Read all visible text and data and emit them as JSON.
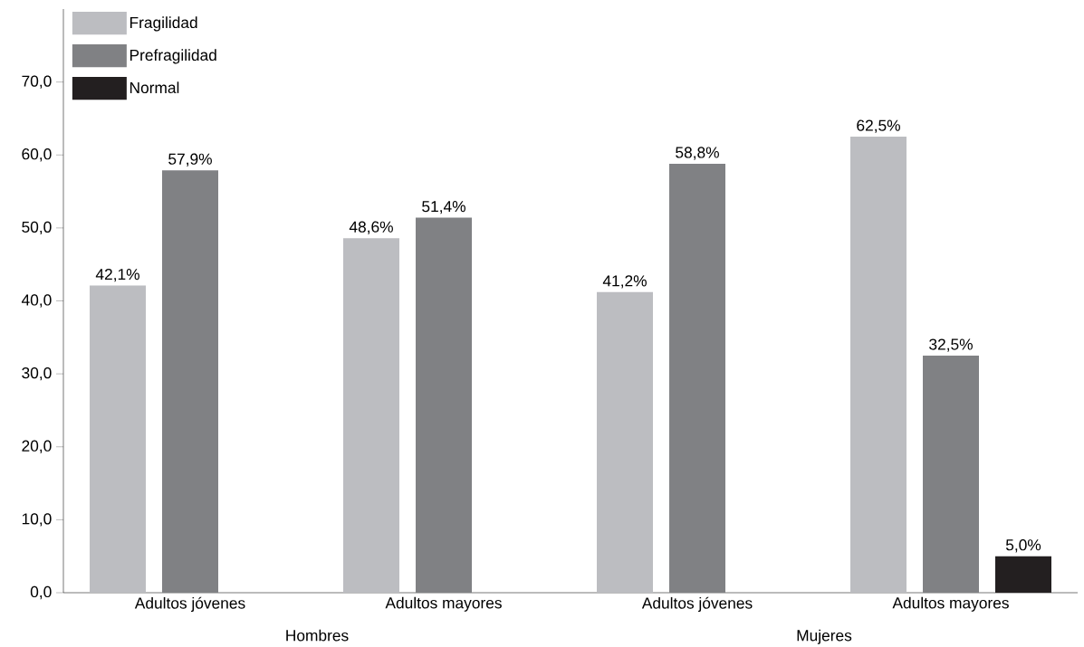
{
  "chart_data": {
    "type": "bar",
    "categories": [
      "Adultos jóvenes",
      "Adultos mayores",
      "Adultos jóvenes",
      "Adultos mayores"
    ],
    "series": [
      {
        "name": "Fragilidad",
        "color": "#bcbdc1",
        "values": [
          42.1,
          48.6,
          41.2,
          62.5
        ],
        "value_labels": [
          "42,1%",
          "48,6%",
          "41,2%",
          "62,5%"
        ]
      },
      {
        "name": "Prefragilidad",
        "color": "#808184",
        "values": [
          57.9,
          51.4,
          58.8,
          32.5
        ],
        "value_labels": [
          "57,9%",
          "51,4%",
          "58,8%",
          "32,5%"
        ]
      },
      {
        "name": "Normal",
        "color": "#231f20",
        "values": [
          null,
          null,
          null,
          5.0
        ],
        "value_labels": [
          null,
          null,
          null,
          "5,0%"
        ]
      }
    ],
    "ylim": [
      0,
      80
    ],
    "yticks": [
      {
        "value": 0,
        "label": "0,0"
      },
      {
        "value": 10,
        "label": "10,0"
      },
      {
        "value": 20,
        "label": "20,0"
      },
      {
        "value": 30,
        "label": "30,0"
      },
      {
        "value": 40,
        "label": "40,0"
      },
      {
        "value": 50,
        "label": "50,0"
      },
      {
        "value": 60,
        "label": "60,0"
      },
      {
        "value": 70,
        "label": "70,0"
      }
    ],
    "annotations": [
      "Hombres",
      "Mujeres"
    ],
    "legend": "top left",
    "grid": false
  }
}
